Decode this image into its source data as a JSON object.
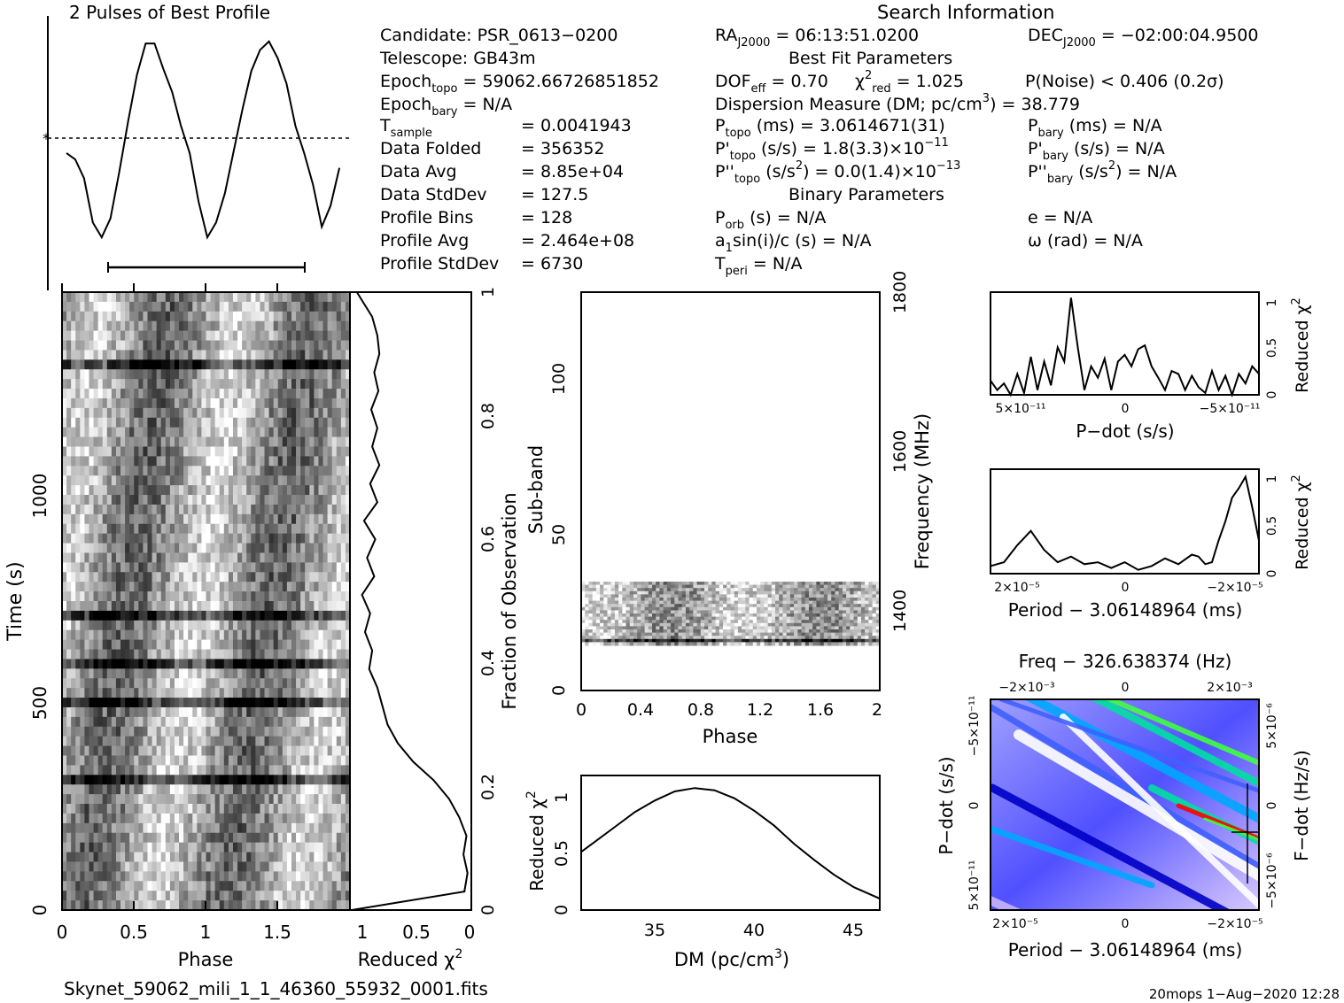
{
  "profile_title": "2 Pulses of Best Profile",
  "search_title": "Search Information",
  "info": {
    "candidate": "Candidate:  PSR_0613−0200",
    "telescope": "Telescope:  GB43m",
    "epoch_topo": "Epoch",
    "epoch_topo_sub": "topo",
    "epoch_topo_val": " = 59062.66726851852",
    "epoch_bary": "Epoch",
    "epoch_bary_sub": "bary",
    "epoch_bary_val": " = N/A",
    "t_sample": "T",
    "t_sample_sub": "sample",
    "t_sample_val": "=   0.0041943",
    "data_folded": "Data Folded",
    "data_folded_val": "=   356352",
    "data_avg": "Data Avg",
    "data_avg_val": "=   8.85e+04",
    "data_stddev": "Data StdDev",
    "data_stddev_val": "=   127.5",
    "profile_bins": "Profile Bins",
    "profile_bins_val": "=   128",
    "profile_avg": "Profile Avg",
    "profile_avg_val": "=   2.464e+08",
    "profile_stddev": "Profile StdDev",
    "profile_stddev_val": "=   6730"
  },
  "search": {
    "ra": "RA",
    "ra_sub": "J2000",
    "ra_val": " = 06:13:51.0200",
    "dec": "DEC",
    "dec_sub": "J2000",
    "dec_val": " = −02:00:04.9500",
    "best_fit": "Best Fit Parameters",
    "dof": "DOF",
    "dof_sub": "eff",
    "dof_val": " = 0.70",
    "chi": "χ",
    "chi_sup": "2",
    "chi_sub": "red",
    "chi_val": " = 1.025",
    "pnoise": "P(Noise) < 0.406   (0.2σ)",
    "dm_line_a": "Dispersion Measure (DM; pc/cm",
    "dm_line_sup": "3",
    "dm_line_b": ") = 38.779",
    "p_topo": "P",
    "p_topo_sub": "topo",
    "p_topo_val": " (ms) =  3.0614671(31)",
    "p_bary": "P",
    "p_bary_sub": "bary",
    "p_bary_val": " (ms) = N/A",
    "pd_topo": "P'",
    "pd_topo_sub": "topo",
    "pd_topo_val": " (s/s) =  1.8(3.3)×10",
    "pd_topo_exp": "−11",
    "pd_bary": "P'",
    "pd_bary_sub": "bary",
    "pd_bary_val": " (s/s) = N/A",
    "pdd_topo": "P''",
    "pdd_topo_sub": "topo",
    "pdd_topo_val_a": " (s/s",
    "pdd_topo_val_sup": "2",
    "pdd_topo_val_b": ") = 0.0(1.4)×10",
    "pdd_topo_exp": "−13",
    "pdd_bary": "P''",
    "pdd_bary_sub": "bary",
    "pdd_bary_val_a": " (s/s",
    "pdd_bary_val_sup": "2",
    "pdd_bary_val_b": ") = N/A",
    "binary": "Binary Parameters",
    "porb": "P",
    "porb_sub": "orb",
    "porb_val": " (s) = N/A",
    "e": "e = N/A",
    "a1": "a",
    "a1_sub": "1",
    "a1_val": "sin(i)/c (s) = N/A",
    "omega": "ω (rad) = N/A",
    "tperi": "T",
    "tperi_sub": "peri",
    "tperi_val": " = N/A"
  },
  "footer": {
    "filename": "Skynet_59062_mili_1_1_46360_55932_0001.fits",
    "stamp": "20mops   1−Aug−2020 12:28"
  },
  "chart_data": [
    {
      "name": "pulse-profile",
      "type": "line",
      "title": "2 Pulses of Best Profile",
      "x": [
        0,
        0.0625,
        0.125,
        0.1875,
        0.25,
        0.3125,
        0.375,
        0.4375,
        0.5,
        0.5625,
        0.625,
        0.6875,
        0.75,
        0.8125,
        0.875,
        0.9375,
        1.0,
        1.0625,
        1.125,
        1.1875,
        1.25,
        1.3125,
        1.375,
        1.4375,
        1.5,
        1.5625,
        1.625,
        1.6875,
        1.75,
        1.8125,
        1.875,
        1.9375
      ],
      "y": [
        0.45,
        0.42,
        0.33,
        0.12,
        0.05,
        0.14,
        0.36,
        0.6,
        0.82,
        0.97,
        0.97,
        0.85,
        0.74,
        0.58,
        0.45,
        0.22,
        0.05,
        0.12,
        0.26,
        0.46,
        0.66,
        0.84,
        0.94,
        0.98,
        0.9,
        0.78,
        0.58,
        0.45,
        0.3,
        0.1,
        0.2,
        0.38
      ],
      "labels_shown": false
    },
    {
      "name": "time-phase",
      "type": "heatmap",
      "xlabel": "Phase",
      "ylabel": "Time (s)",
      "x_ticks": [
        "0",
        "0.5",
        "1",
        "1.5"
      ],
      "y_ticks": [
        "0",
        "500",
        "1000"
      ],
      "xlim": [
        0,
        2
      ],
      "ylim": [
        0,
        1490
      ],
      "right_axis_label": "Fraction of Observation",
      "right_ticks": [
        "0",
        "0.2",
        "0.4",
        "0.6",
        "0.8",
        "1"
      ]
    },
    {
      "name": "reduced-chi2-vs-time",
      "type": "line",
      "xlabel": "Reduced χ",
      "xlabel_sup": "2",
      "x_ticks": [
        "1",
        "0.5",
        "0"
      ],
      "xlim": [
        1.15,
        0
      ],
      "ylim": [
        0,
        1
      ],
      "y": [
        0.0,
        0.03,
        0.06,
        0.09,
        0.12,
        0.15,
        0.18,
        0.21,
        0.24,
        0.27,
        0.3,
        0.33,
        0.36,
        0.39,
        0.42,
        0.45,
        0.48,
        0.51,
        0.54,
        0.57,
        0.6,
        0.63,
        0.66,
        0.69,
        0.72,
        0.75,
        0.78,
        0.81,
        0.84,
        0.87,
        0.9,
        0.93,
        0.96,
        1.0
      ],
      "x": [
        1.15,
        0.05,
        0.02,
        0.06,
        0.03,
        0.1,
        0.2,
        0.35,
        0.55,
        0.7,
        0.8,
        0.85,
        0.9,
        0.98,
        0.95,
        1.02,
        0.97,
        1.05,
        0.93,
        1.0,
        0.92,
        1.03,
        0.9,
        0.97,
        0.88,
        0.95,
        0.9,
        0.96,
        0.89,
        0.93,
        0.88,
        0.9,
        0.95,
        1.1
      ]
    },
    {
      "name": "phase-subband",
      "type": "heatmap",
      "xlabel": "Phase",
      "ylabel": "Sub-band",
      "x_ticks": [
        "0",
        "0.4",
        "0.8",
        "1.2",
        "1.6",
        "2"
      ],
      "y_ticks": [
        "0",
        "50",
        "100"
      ],
      "xlim": [
        0,
        2
      ],
      "ylim": [
        0,
        128
      ],
      "right_axis_label": "Frequency (MHz)",
      "right_ticks": [
        "1400",
        "1600",
        "1800"
      ]
    },
    {
      "name": "dm-curve",
      "type": "line",
      "xlabel": "DM (pc/cm",
      "xlabel_sup": "3",
      "xlabel_end": ")",
      "ylabel": "Reduced χ",
      "ylabel_sup": "2",
      "x_ticks": [
        "35",
        "40",
        "45"
      ],
      "y_ticks": [
        "0",
        "0.5",
        "1"
      ],
      "xlim": [
        31.3,
        46.3
      ],
      "ylim": [
        0,
        1.18
      ],
      "x": [
        31.3,
        32,
        33,
        34,
        35,
        36,
        37,
        38,
        39,
        40,
        41,
        42,
        43,
        44,
        45,
        46.3
      ],
      "y": [
        0.51,
        0.6,
        0.73,
        0.86,
        0.96,
        1.04,
        1.07,
        1.05,
        0.98,
        0.87,
        0.74,
        0.58,
        0.44,
        0.31,
        0.2,
        0.1
      ]
    },
    {
      "name": "pdot-curve",
      "type": "line",
      "xlabel": "P−dot (s/s)",
      "ylabel": "Reduced χ",
      "ylabel_sup": "2",
      "x_ticks": [
        "5×10⁻¹¹",
        "0",
        "−5×10⁻¹¹"
      ],
      "y_ticks": [
        "0",
        "0.5",
        "1"
      ],
      "xlim": [
        1,
        -1
      ],
      "ylim": [
        0,
        1.08
      ],
      "x": [
        1,
        0.95,
        0.9,
        0.85,
        0.8,
        0.75,
        0.7,
        0.65,
        0.6,
        0.55,
        0.5,
        0.45,
        0.4,
        0.35,
        0.3,
        0.25,
        0.2,
        0.15,
        0.1,
        0.05,
        0,
        -0.05,
        -0.1,
        -0.15,
        -0.2,
        -0.25,
        -0.3,
        -0.35,
        -0.4,
        -0.45,
        -0.5,
        -0.55,
        -0.6,
        -0.65,
        -0.7,
        -0.75,
        -0.8,
        -0.85,
        -0.9,
        -0.95,
        -1
      ],
      "y": [
        0.15,
        0.05,
        0.12,
        0.0,
        0.22,
        0.02,
        0.4,
        0.05,
        0.35,
        0.1,
        0.5,
        0.35,
        1.02,
        0.5,
        0.05,
        0.3,
        0.18,
        0.38,
        0.05,
        0.35,
        0.42,
        0.3,
        0.48,
        0.52,
        0.3,
        0.18,
        0.05,
        0.25,
        0.22,
        0.05,
        0.2,
        0.08,
        0.02,
        0.25,
        0.05,
        0.2,
        0.0,
        0.22,
        0.12,
        0.3,
        0.22
      ]
    },
    {
      "name": "period-curve",
      "type": "line",
      "xlabel": "Period − 3.06148964 (ms)",
      "ylabel": "Reduced χ",
      "ylabel_sup": "2",
      "x_ticks": [
        "2×10⁻⁵",
        "0",
        "−2×10⁻⁵"
      ],
      "y_ticks": [
        "0",
        "0.5",
        "1"
      ],
      "xlim": [
        1,
        -1
      ],
      "ylim": [
        0,
        1.1
      ],
      "x": [
        1,
        0.9,
        0.8,
        0.7,
        0.6,
        0.5,
        0.4,
        0.3,
        0.2,
        0.1,
        0,
        -0.1,
        -0.2,
        -0.3,
        -0.4,
        -0.5,
        -0.55,
        -0.6,
        -0.65,
        -0.7,
        -0.75,
        -0.8,
        -0.85,
        -0.9,
        -0.95,
        -1
      ],
      "y": [
        0.08,
        0.12,
        0.3,
        0.45,
        0.25,
        0.12,
        0.18,
        0.1,
        0.12,
        0.06,
        0.12,
        0.04,
        0.08,
        0.16,
        0.1,
        0.2,
        0.18,
        0.1,
        0.12,
        0.35,
        0.55,
        0.8,
        0.9,
        1.02,
        0.7,
        0.35
      ]
    },
    {
      "name": "pdot-period-map",
      "type": "heatmap",
      "title": "Freq − 326.638374 (Hz)",
      "xlabel": "Period − 3.06148964 (ms)",
      "ylabel": "P−dot (s/s)",
      "right_axis_label": "F−dot (Hz/s)",
      "x_ticks": [
        "2×10⁻⁵",
        "0",
        "−2×10⁻⁵"
      ],
      "top_ticks": [
        "−2×10⁻³",
        "0",
        "2×10⁻³"
      ],
      "y_ticks": [
        "−5×10⁻¹¹",
        "0",
        "5×10⁻¹¹"
      ],
      "right_ticks": [
        "5×10⁻⁶",
        "0",
        "−5×10⁻⁶"
      ],
      "colors": [
        "#ffffff",
        "#c8b4ff",
        "#4060ff",
        "#0000c8",
        "#00a8ff",
        "#00e0a0",
        "#40ff40",
        "#ff0000"
      ]
    }
  ]
}
